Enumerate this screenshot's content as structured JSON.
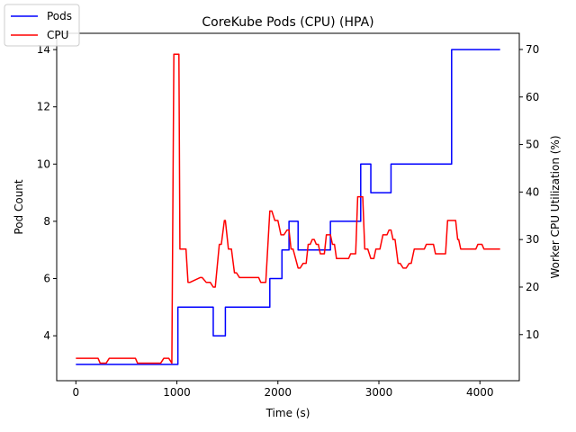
{
  "chart_data": {
    "type": "line",
    "title": "CoreKube Pods (CPU)  (HPA)",
    "xlabel": "Time (s)",
    "ylabel_left": "Pod Count",
    "ylabel_right": "Worker CPU Utilization (%)",
    "xlim": [
      -190,
      4390
    ],
    "ylim_left": [
      2.43,
      14.57
    ],
    "ylim_right": [
      0.3,
      73.4
    ],
    "xticks": [
      0,
      1000,
      2000,
      3000,
      4000
    ],
    "yticks_left": [
      4,
      6,
      8,
      10,
      12,
      14
    ],
    "yticks_right": [
      10,
      20,
      30,
      40,
      50,
      60,
      70
    ],
    "legend_position": "top-left",
    "grid": false,
    "series": [
      {
        "name": "Pods",
        "axis": "left",
        "color": "#0000ff",
        "step": true,
        "x": [
          0,
          1010,
          1360,
          1480,
          1920,
          2040,
          2110,
          2200,
          2520,
          2820,
          2920,
          3120,
          3720,
          4200
        ],
        "y": [
          3,
          5,
          4,
          5,
          6,
          7,
          8,
          7,
          8,
          10,
          9,
          10,
          14,
          14
        ]
      },
      {
        "name": "CPU",
        "axis": "right",
        "color": "#ff0000",
        "step": false,
        "x": [
          0,
          220,
          240,
          300,
          330,
          590,
          610,
          840,
          870,
          920,
          950,
          970,
          1020,
          1030,
          1070,
          1090,
          1110,
          1130,
          1230,
          1250,
          1290,
          1330,
          1360,
          1380,
          1420,
          1440,
          1470,
          1480,
          1510,
          1540,
          1570,
          1590,
          1620,
          1810,
          1830,
          1860,
          1880,
          1920,
          1940,
          1970,
          2000,
          2030,
          2060,
          2090,
          2110,
          2130,
          2150,
          2200,
          2220,
          2250,
          2260,
          2280,
          2300,
          2320,
          2340,
          2360,
          2380,
          2400,
          2420,
          2440,
          2460,
          2480,
          2500,
          2520,
          2540,
          2560,
          2580,
          2600,
          2620,
          2700,
          2720,
          2740,
          2770,
          2790,
          2810,
          2840,
          2860,
          2870,
          2890,
          2920,
          2940,
          2950,
          2970,
          3010,
          3040,
          3060,
          3080,
          3100,
          3120,
          3140,
          3160,
          3190,
          3210,
          3240,
          3270,
          3300,
          3320,
          3350,
          3450,
          3470,
          3510,
          3540,
          3560,
          3580,
          3640,
          3660,
          3680,
          3720,
          3740,
          3760,
          3780,
          3790,
          3810,
          3840,
          3960,
          3980,
          4000,
          4020,
          4040,
          4080,
          4200
        ],
        "y": [
          5,
          5,
          4,
          4,
          5,
          5,
          4,
          4,
          5,
          5,
          4,
          69,
          69,
          28,
          28,
          28,
          21,
          21,
          22,
          22,
          21,
          21,
          20,
          20,
          29,
          29,
          34,
          34,
          28,
          28,
          23,
          23,
          22,
          22,
          21,
          21,
          21,
          36,
          36,
          34,
          34,
          31,
          31,
          32,
          32,
          28,
          28,
          24,
          24,
          25,
          25,
          25,
          29,
          29,
          30,
          30,
          29,
          29,
          27,
          27,
          27,
          31,
          31,
          31,
          29,
          29,
          26,
          26,
          26,
          26,
          27,
          27,
          27,
          39,
          39,
          39,
          28,
          28,
          28,
          26,
          26,
          26,
          28,
          28,
          31,
          31,
          31,
          32,
          32,
          30,
          30,
          25,
          25,
          24,
          24,
          25,
          25,
          28,
          28,
          29,
          29,
          29,
          27,
          27,
          27,
          27,
          34,
          34,
          34,
          34,
          30,
          30,
          28,
          28,
          28,
          29,
          29,
          29,
          28,
          28,
          28
        ]
      }
    ]
  }
}
